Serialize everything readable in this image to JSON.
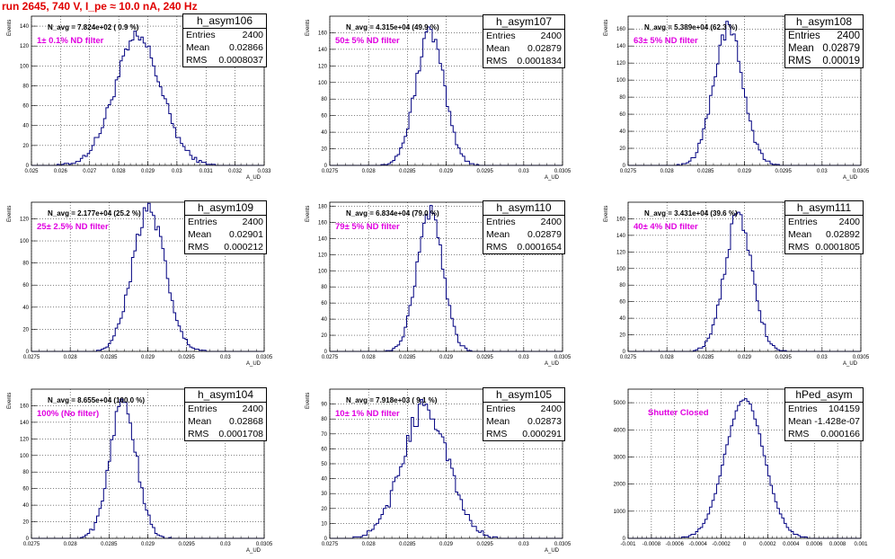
{
  "title": "run 2645,   740 V, I_pe ≈ 10.0 nA, 240 Hz",
  "colors": {
    "title": "#e00000",
    "histogram": "#000080",
    "filter_label": "#e000e0"
  },
  "chart_data": [
    {
      "type": "histogram",
      "name": "h_asym106",
      "stats": {
        "entries_label": "Entries",
        "entries": "2400",
        "mean_label": "Mean",
        "mean": "0.02866",
        "rms_label": "RMS",
        "rms": "0.0008037"
      },
      "navg_label": "N_avg = 7.824e+02 ( 0.9 %)",
      "filter_label": "1± 0.1% ND filter",
      "ylabel": "Events",
      "xlabel": "A_UD",
      "xlim": [
        0.025,
        0.033
      ],
      "ylim": [
        0,
        150
      ],
      "mean": 0.02866,
      "sigma": 0.0008037,
      "peak": 127,
      "xticks": [
        "0.025",
        "0.026",
        "0.027",
        "0.028",
        "0.029",
        "0.03",
        "0.031",
        "0.032",
        "0.033"
      ],
      "yticks": [
        "0",
        "20",
        "40",
        "60",
        "80",
        "100",
        "120",
        "140"
      ]
    },
    {
      "type": "histogram",
      "name": "h_asym107",
      "stats": {
        "entries_label": "Entries",
        "entries": "2400",
        "mean_label": "Mean",
        "mean": "0.02879",
        "rms_label": "RMS",
        "rms": "0.0001834"
      },
      "navg_label": "N_avg = 4.315e+04 (49.9 %)",
      "filter_label": "50± 5% ND filter",
      "ylabel": "Events",
      "xlabel": "A_UD",
      "xlim": [
        0.0275,
        0.0305
      ],
      "ylim": [
        0,
        180
      ],
      "mean": 0.02879,
      "sigma": 0.0001834,
      "peak": 160,
      "xticks": [
        "0.0275",
        "0.028",
        "0.0285",
        "0.029",
        "0.0295",
        "0.03",
        "0.0305"
      ],
      "yticks": [
        "0",
        "20",
        "40",
        "60",
        "80",
        "100",
        "120",
        "140",
        "160"
      ]
    },
    {
      "type": "histogram",
      "name": "h_asym108",
      "stats": {
        "entries_label": "Entries",
        "entries": "2400",
        "mean_label": "Mean",
        "mean": "0.02879",
        "rms_label": "RMS",
        "rms": "0.00019"
      },
      "navg_label": "N_avg = 5.389e+04 (62.3 %)",
      "filter_label": "63± 5% ND filter",
      "ylabel": "Events",
      "xlabel": "A_UD",
      "xlim": [
        0.0275,
        0.0305
      ],
      "ylim": [
        0,
        175
      ],
      "mean": 0.02879,
      "sigma": 0.00019,
      "peak": 160,
      "xticks": [
        "0.0275",
        "0.028",
        "0.0285",
        "0.029",
        "0.0295",
        "0.03",
        "0.0305"
      ],
      "yticks": [
        "0",
        "20",
        "40",
        "60",
        "80",
        "100",
        "120",
        "140",
        "160"
      ]
    },
    {
      "type": "histogram",
      "name": "h_asym109",
      "stats": {
        "entries_label": "Entries",
        "entries": "2400",
        "mean_label": "Mean",
        "mean": "0.02901",
        "rms_label": "RMS",
        "rms": "0.000212"
      },
      "navg_label": "N_avg = 2.177e+04 (25.2 %)",
      "filter_label": "25± 2.5% ND filter",
      "ylabel": "Events",
      "xlabel": "A_UD",
      "xlim": [
        0.0275,
        0.0305
      ],
      "ylim": [
        0,
        135
      ],
      "mean": 0.02901,
      "sigma": 0.000212,
      "peak": 127,
      "xticks": [
        "0.0275",
        "0.028",
        "0.0285",
        "0.029",
        "0.0295",
        "0.03",
        "0.0305"
      ],
      "yticks": [
        "0",
        "20",
        "40",
        "60",
        "80",
        "100",
        "120"
      ]
    },
    {
      "type": "histogram",
      "name": "h_asym110",
      "stats": {
        "entries_label": "Entries",
        "entries": "2400",
        "mean_label": "Mean",
        "mean": "0.02879",
        "rms_label": "RMS",
        "rms": "0.0001654"
      },
      "navg_label": "N_avg = 6.834e+04 (79.0 %)",
      "filter_label": "79± 5% ND filter",
      "ylabel": "Events",
      "xlabel": "A_UD",
      "xlim": [
        0.0275,
        0.0305
      ],
      "ylim": [
        0,
        185
      ],
      "mean": 0.02879,
      "sigma": 0.0001654,
      "peak": 172,
      "xticks": [
        "0.0275",
        "0.028",
        "0.0285",
        "0.029",
        "0.0295",
        "0.03",
        "0.0305"
      ],
      "yticks": [
        "0",
        "20",
        "40",
        "60",
        "80",
        "100",
        "120",
        "140",
        "160",
        "180"
      ]
    },
    {
      "type": "histogram",
      "name": "h_asym111",
      "stats": {
        "entries_label": "Entries",
        "entries": "2400",
        "mean_label": "Mean",
        "mean": "0.02892",
        "rms_label": "RMS",
        "rms": "0.0001805"
      },
      "navg_label": "N_avg = 3.431e+04 (39.6 %)",
      "filter_label": "40± 4% ND filter",
      "ylabel": "Events",
      "xlabel": "A_UD",
      "xlim": [
        0.0275,
        0.0305
      ],
      "ylim": [
        0,
        180
      ],
      "mean": 0.02892,
      "sigma": 0.0001805,
      "peak": 162,
      "xticks": [
        "0.0275",
        "0.028",
        "0.0285",
        "0.029",
        "0.0295",
        "0.03",
        "0.0305"
      ],
      "yticks": [
        "0",
        "20",
        "40",
        "60",
        "80",
        "100",
        "120",
        "140",
        "160"
      ]
    },
    {
      "type": "histogram",
      "name": "h_asym104",
      "stats": {
        "entries_label": "Entries",
        "entries": "2400",
        "mean_label": "Mean",
        "mean": "0.02868",
        "rms_label": "RMS",
        "rms": "0.0001708"
      },
      "navg_label": "N_avg = 8.655e+04 (100.0 %)",
      "filter_label": "100% (No filter)",
      "ylabel": "Events",
      "xlabel": "A_UD",
      "xlim": [
        0.0275,
        0.0305
      ],
      "ylim": [
        0,
        180
      ],
      "mean": 0.02868,
      "sigma": 0.0001708,
      "peak": 165,
      "xticks": [
        "0.0275",
        "0.028",
        "0.0285",
        "0.029",
        "0.0295",
        "0.03",
        "0.0305"
      ],
      "yticks": [
        "0",
        "20",
        "40",
        "60",
        "80",
        "100",
        "120",
        "140",
        "160"
      ]
    },
    {
      "type": "histogram",
      "name": "h_asym105",
      "stats": {
        "entries_label": "Entries",
        "entries": "2400",
        "mean_label": "Mean",
        "mean": "0.02873",
        "rms_label": "RMS",
        "rms": "0.000291"
      },
      "navg_label": "N_avg = 7.918e+03 ( 9.1 %)",
      "filter_label": "10± 1% ND filter",
      "ylabel": "Events",
      "xlabel": "A_UD",
      "xlim": [
        0.0275,
        0.0305
      ],
      "ylim": [
        0,
        100
      ],
      "mean": 0.02873,
      "sigma": 0.000291,
      "peak": 88,
      "xticks": [
        "0.0275",
        "0.028",
        "0.0285",
        "0.029",
        "0.0295",
        "0.03",
        "0.0305"
      ],
      "yticks": [
        "0",
        "10",
        "20",
        "30",
        "40",
        "50",
        "60",
        "70",
        "80",
        "90"
      ]
    },
    {
      "type": "histogram",
      "name": "hPed_asym",
      "stats": {
        "entries_label": "Entries",
        "entries": "104159",
        "mean_label": "Mean",
        "mean": "-1.428e-07",
        "rms_label": "RMS",
        "rms": "0.000166"
      },
      "navg_label": "",
      "filter_label": "Shutter Closed",
      "ylabel": "",
      "xlabel": "",
      "xlim": [
        -0.001,
        0.001
      ],
      "ylim": [
        0,
        5500
      ],
      "mean": 0,
      "sigma": 0.000166,
      "peak": 5150,
      "xticks": [
        "-0.001",
        "-0.0008",
        "-0.0006",
        "-0.0004",
        "-0.0002",
        "0",
        "0.0002",
        "0.0004",
        "0.0006",
        "0.0008",
        "0.001"
      ],
      "yticks": [
        "0",
        "1000",
        "2000",
        "3000",
        "4000",
        "5000"
      ]
    }
  ]
}
